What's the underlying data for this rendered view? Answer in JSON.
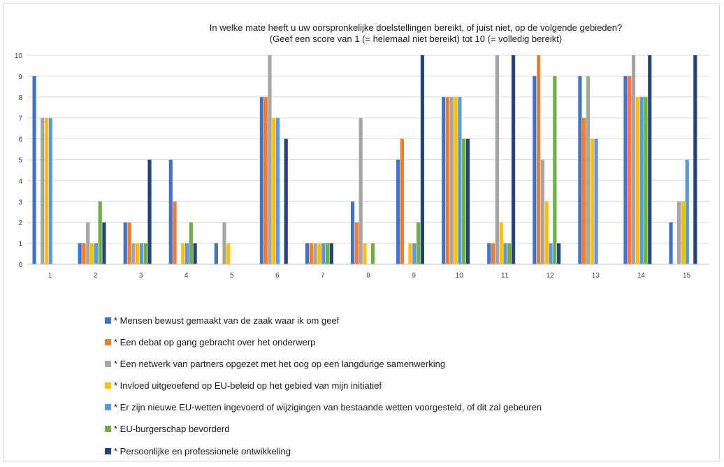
{
  "chart_data": {
    "type": "bar",
    "title": "In welke mate heeft u uw oorspronkelijke doelstellingen bereikt, of  juist niet, op de volgende gebieden?",
    "subtitle": "(Geef een score van 1 (= helemaal niet bereikt) tot 10 (= volledig bereikt)",
    "xlabel": "",
    "ylabel": "",
    "ylim": [
      0,
      10
    ],
    "yticks": [
      0,
      1,
      2,
      3,
      4,
      5,
      6,
      7,
      8,
      9,
      10
    ],
    "grid": true,
    "legend_position": "bottom",
    "categories": [
      "1",
      "2",
      "3",
      "4",
      "5",
      "6",
      "7",
      "8",
      "9",
      "10",
      "11",
      "12",
      "13",
      "14",
      "15"
    ],
    "series": [
      {
        "name": "* Mensen bewust gemaakt van de zaak waar ik om geef",
        "color": "#4472c4",
        "values": [
          9,
          1,
          2,
          5,
          1,
          8,
          1,
          3,
          5,
          8,
          1,
          9,
          9,
          9,
          2
        ]
      },
      {
        "name": "* Een debat op gang gebracht over het onderwerp",
        "color": "#ed7d31",
        "values": [
          0,
          1,
          2,
          3,
          0,
          8,
          1,
          2,
          6,
          8,
          1,
          10,
          7,
          9,
          0
        ]
      },
      {
        "name": "* Een netwerk van partners opgezet met het oog op een langdurige samenwerking",
        "color": "#a5a5a5",
        "values": [
          7,
          2,
          1,
          0,
          2,
          10,
          1,
          7,
          0,
          8,
          10,
          5,
          9,
          10,
          3
        ]
      },
      {
        "name": "* Invloed uitgeoefend op EU-beleid op het gebied van mijn initiatief",
        "color": "#ffc000",
        "values": [
          7,
          1,
          1,
          1,
          1,
          7,
          1,
          1,
          1,
          8,
          2,
          3,
          6,
          8,
          3
        ]
      },
      {
        "name": "* Er zijn nieuwe EU-wetten ingevoerd of wijzigingen van bestaande wetten voorgesteld, of dit zal gebeuren",
        "color": "#5b9bd5",
        "values": [
          7,
          1,
          1,
          1,
          0,
          7,
          1,
          0,
          1,
          8,
          1,
          1,
          6,
          8,
          5
        ]
      },
      {
        "name": "* EU-burgerschap bevorderd",
        "color": "#70ad47",
        "values": [
          0,
          3,
          1,
          2,
          0,
          0,
          1,
          1,
          2,
          6,
          1,
          9,
          0,
          8,
          0
        ]
      },
      {
        "name": "* Persoonlijke en professionele ontwikkeling",
        "color": "#264478",
        "values": [
          0,
          2,
          5,
          1,
          0,
          6,
          1,
          0,
          10,
          6,
          10,
          1,
          0,
          10,
          10
        ]
      }
    ]
  }
}
